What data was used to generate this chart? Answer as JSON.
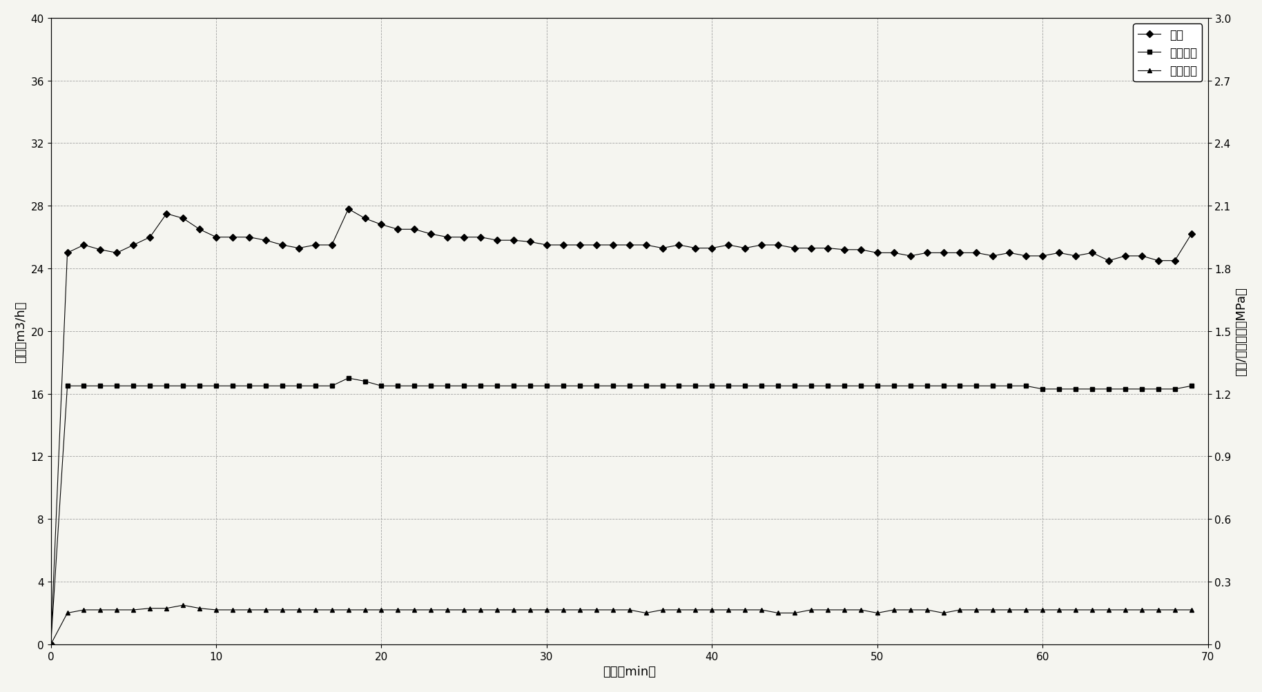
{
  "flow_x": [
    0,
    1,
    2,
    3,
    4,
    5,
    6,
    7,
    8,
    9,
    10,
    11,
    12,
    13,
    14,
    15,
    16,
    17,
    18,
    19,
    20,
    21,
    22,
    23,
    24,
    25,
    26,
    27,
    28,
    29,
    30,
    31,
    32,
    33,
    34,
    35,
    36,
    37,
    38,
    39,
    40,
    41,
    42,
    43,
    44,
    45,
    46,
    47,
    48,
    49,
    50,
    51,
    52,
    53,
    54,
    55,
    56,
    57,
    58,
    59,
    60,
    61,
    62,
    63,
    64,
    65,
    66,
    67,
    68,
    69
  ],
  "flow_y": [
    0,
    25.0,
    25.5,
    25.2,
    25.0,
    25.5,
    26.0,
    27.5,
    27.2,
    26.5,
    26.0,
    26.0,
    26.0,
    25.8,
    25.5,
    25.3,
    25.5,
    25.5,
    27.8,
    27.2,
    26.8,
    26.5,
    26.5,
    26.2,
    26.0,
    26.0,
    26.0,
    25.8,
    25.8,
    25.7,
    25.5,
    25.5,
    25.5,
    25.5,
    25.5,
    25.5,
    25.5,
    25.3,
    25.5,
    25.3,
    25.3,
    25.5,
    25.3,
    25.5,
    25.5,
    25.3,
    25.3,
    25.3,
    25.2,
    25.2,
    25.0,
    25.0,
    24.8,
    25.0,
    25.0,
    25.0,
    25.0,
    24.8,
    25.0,
    24.8,
    24.8,
    25.0,
    24.8,
    25.0,
    24.5,
    24.8,
    24.8,
    24.5,
    24.5,
    26.2
  ],
  "inlet_x": [
    0,
    1,
    2,
    3,
    4,
    5,
    6,
    7,
    8,
    9,
    10,
    11,
    12,
    13,
    14,
    15,
    16,
    17,
    18,
    19,
    20,
    21,
    22,
    23,
    24,
    25,
    26,
    27,
    28,
    29,
    30,
    31,
    32,
    33,
    34,
    35,
    36,
    37,
    38,
    39,
    40,
    41,
    42,
    43,
    44,
    45,
    46,
    47,
    48,
    49,
    50,
    51,
    52,
    53,
    54,
    55,
    56,
    57,
    58,
    59,
    60,
    61,
    62,
    63,
    64,
    65,
    66,
    67,
    68,
    69
  ],
  "inlet_y": [
    0,
    16.5,
    16.5,
    16.5,
    16.5,
    16.5,
    16.5,
    16.5,
    16.5,
    16.5,
    16.5,
    16.5,
    16.5,
    16.5,
    16.5,
    16.5,
    16.5,
    16.5,
    17.0,
    16.8,
    16.5,
    16.5,
    16.5,
    16.5,
    16.5,
    16.5,
    16.5,
    16.5,
    16.5,
    16.5,
    16.5,
    16.5,
    16.5,
    16.5,
    16.5,
    16.5,
    16.5,
    16.5,
    16.5,
    16.5,
    16.5,
    16.5,
    16.5,
    16.5,
    16.5,
    16.5,
    16.5,
    16.5,
    16.5,
    16.5,
    16.5,
    16.5,
    16.5,
    16.5,
    16.5,
    16.5,
    16.5,
    16.5,
    16.5,
    16.5,
    16.3,
    16.3,
    16.3,
    16.3,
    16.3,
    16.3,
    16.3,
    16.3,
    16.3,
    16.5
  ],
  "outlet_x": [
    0,
    1,
    2,
    3,
    4,
    5,
    6,
    7,
    8,
    9,
    10,
    11,
    12,
    13,
    14,
    15,
    16,
    17,
    18,
    19,
    20,
    21,
    22,
    23,
    24,
    25,
    26,
    27,
    28,
    29,
    30,
    31,
    32,
    33,
    34,
    35,
    36,
    37,
    38,
    39,
    40,
    41,
    42,
    43,
    44,
    45,
    46,
    47,
    48,
    49,
    50,
    51,
    52,
    53,
    54,
    55,
    56,
    57,
    58,
    59,
    60,
    61,
    62,
    63,
    64,
    65,
    66,
    67,
    68,
    69
  ],
  "outlet_y": [
    0,
    2.0,
    2.2,
    2.2,
    2.2,
    2.2,
    2.3,
    2.3,
    2.5,
    2.3,
    2.2,
    2.2,
    2.2,
    2.2,
    2.2,
    2.2,
    2.2,
    2.2,
    2.2,
    2.2,
    2.2,
    2.2,
    2.2,
    2.2,
    2.2,
    2.2,
    2.2,
    2.2,
    2.2,
    2.2,
    2.2,
    2.2,
    2.2,
    2.2,
    2.2,
    2.2,
    2.0,
    2.2,
    2.2,
    2.2,
    2.2,
    2.2,
    2.2,
    2.2,
    2.0,
    2.0,
    2.2,
    2.2,
    2.2,
    2.2,
    2.0,
    2.2,
    2.2,
    2.2,
    2.0,
    2.2,
    2.2,
    2.2,
    2.2,
    2.2,
    2.2,
    2.2,
    2.2,
    2.2,
    2.2,
    2.2,
    2.2,
    2.2,
    2.2,
    2.2
  ],
  "flow_color": "#000000",
  "inlet_color": "#000000",
  "outlet_color": "#000000",
  "left_ylabel": "流量（m3/h）",
  "right_ylabel": "进口/出口压力（MPa）",
  "xlabel": "时间（min）",
  "legend_flow": "流量",
  "legend_inlet": "进口压力",
  "legend_outlet": "出口压力",
  "xlim": [
    0,
    70
  ],
  "ylim_left": [
    0,
    40
  ],
  "ylim_right": [
    0,
    3
  ],
  "xticks": [
    0,
    10,
    20,
    30,
    40,
    50,
    60,
    70
  ],
  "yticks_left": [
    0,
    4,
    8,
    12,
    16,
    20,
    24,
    28,
    32,
    36,
    40
  ],
  "yticks_right": [
    0,
    0.3,
    0.6,
    0.9,
    1.2,
    1.5,
    1.8,
    2.1,
    2.4,
    2.7,
    3.0
  ],
  "background_color": "#f5f5f0",
  "plot_bg_color": "#f5f5f0",
  "grid_color": "#999999",
  "figsize": [
    18.28,
    10.04
  ]
}
